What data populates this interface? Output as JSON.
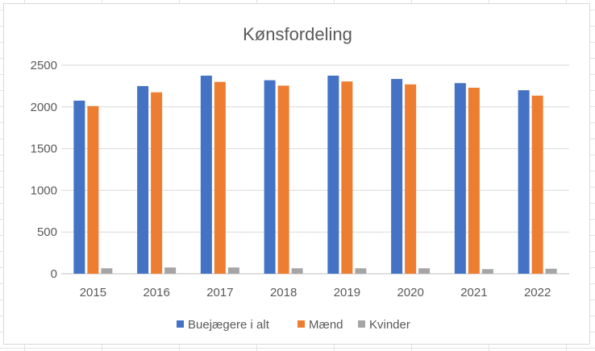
{
  "chart_data": {
    "type": "bar",
    "title": "Kønsfordeling",
    "categories": [
      "2015",
      "2016",
      "2017",
      "2018",
      "2019",
      "2020",
      "2021",
      "2022"
    ],
    "series": [
      {
        "name": "Buejægere i alt",
        "color": "#4472c4",
        "values": [
          2075,
          2250,
          2375,
          2320,
          2375,
          2335,
          2285,
          2200
        ]
      },
      {
        "name": "Mænd",
        "color": "#ed7d31",
        "values": [
          2010,
          2175,
          2300,
          2255,
          2305,
          2270,
          2230,
          2135
        ]
      },
      {
        "name": "Kvinder",
        "color": "#a5a5a5",
        "values": [
          65,
          75,
          75,
          65,
          65,
          65,
          55,
          60
        ]
      }
    ],
    "ylim": [
      0,
      2500
    ],
    "yticks": [
      "0",
      "500",
      "1000",
      "1500",
      "2000",
      "2500"
    ],
    "ytick_values": [
      0,
      500,
      1000,
      1500,
      2000,
      2500
    ],
    "grid": true,
    "legend_position": "bottom"
  }
}
